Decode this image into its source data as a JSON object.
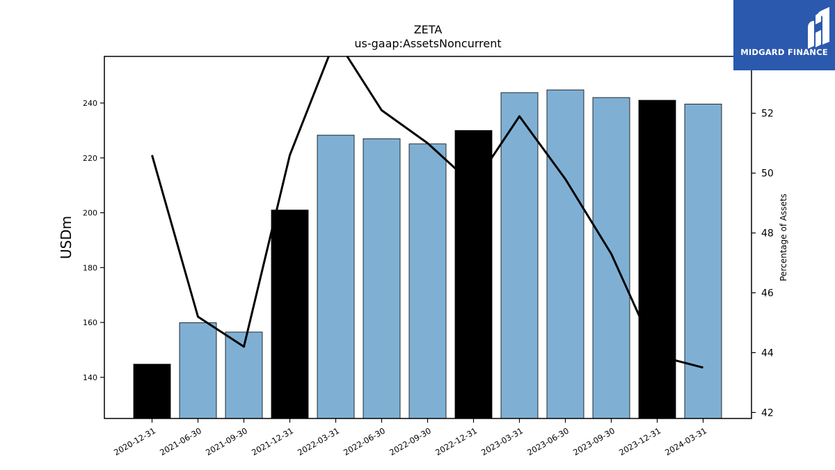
{
  "brand": {
    "name": "MIDGARD FINANCE",
    "color": "#2b59ad"
  },
  "chart_data": {
    "type": "bar",
    "title": "ZETA",
    "subtitle": "us-gaap:AssetsNoncurrent",
    "ylabel": "USDm",
    "y2label": "Percentage of Assets",
    "categories": [
      "2020-12-31",
      "2021-06-30",
      "2021-09-30",
      "2021-12-31",
      "2022-03-31",
      "2022-06-30",
      "2022-09-30",
      "2022-12-31",
      "2023-03-31",
      "2023-06-30",
      "2023-09-30",
      "2023-12-31",
      "2024-03-31"
    ],
    "series": [
      {
        "kind": "bar",
        "axis": "left",
        "values": [
          144.8,
          159.9,
          156.5,
          201.0,
          228.3,
          227.0,
          225.1,
          230.0,
          243.8,
          244.8,
          242.0,
          241.0,
          239.6
        ],
        "highlight": [
          true,
          false,
          false,
          true,
          false,
          false,
          false,
          true,
          false,
          false,
          false,
          true,
          false
        ]
      },
      {
        "kind": "line",
        "axis": "right",
        "values": [
          50.6,
          45.2,
          44.2,
          50.6,
          54.5,
          52.1,
          51.0,
          49.6,
          51.9,
          49.8,
          47.3,
          43.9,
          43.5
        ]
      }
    ],
    "ylim": [
      125,
      257
    ],
    "y2lim": [
      41.8,
      53.9
    ],
    "yticks": [
      140,
      160,
      180,
      200,
      220,
      240
    ],
    "y2ticks": [
      42,
      44,
      46,
      48,
      50,
      52
    ],
    "colors": {
      "bar": "#7fb0d4",
      "highlight": "#000000",
      "line": "#000000"
    },
    "grid": false,
    "legend": "none"
  }
}
